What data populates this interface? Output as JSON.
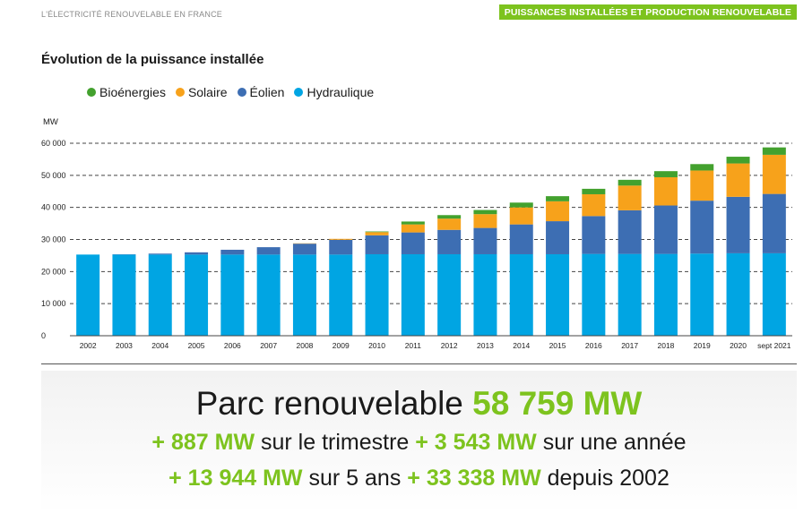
{
  "header": {
    "section": "L'ÉLECTRICITÉ RENOUVELABLE EN FRANCE",
    "badge": "PUISSANCES INSTALLÉES ET PRODUCTION RENOUVELABLE"
  },
  "chart_data": {
    "type": "bar",
    "stacked": true,
    "title": "Évolution de la puissance installée",
    "ylabel": "MW",
    "xlabel": "",
    "ylim": [
      0,
      60000
    ],
    "yticks": [
      0,
      10000,
      20000,
      30000,
      40000,
      50000,
      60000
    ],
    "ytick_labels": [
      "0",
      "10 000",
      "20 000",
      "30 000",
      "40 000",
      "50 000",
      "60 000"
    ],
    "grid": true,
    "legend_position": "top-left",
    "categories": [
      "2002",
      "2003",
      "2004",
      "2005",
      "2006",
      "2007",
      "2008",
      "2009",
      "2010",
      "2011",
      "2012",
      "2013",
      "2014",
      "2015",
      "2016",
      "2017",
      "2018",
      "2019",
      "2020",
      "sept 2021"
    ],
    "series": [
      {
        "name": "Hydraulique",
        "color": "#00a5e3",
        "values": [
          25300,
          25300,
          25300,
          25300,
          25300,
          25300,
          25300,
          25300,
          25400,
          25400,
          25400,
          25400,
          25400,
          25400,
          25500,
          25500,
          25500,
          25600,
          25700,
          25700
        ]
      },
      {
        "name": "Éolien",
        "color": "#3d6eb3",
        "values": [
          0,
          100,
          300,
          700,
          1500,
          2300,
          3400,
          4600,
          5900,
          6800,
          7600,
          8200,
          9300,
          10300,
          11800,
          13600,
          15100,
          16500,
          17600,
          18500
        ]
      },
      {
        "name": "Solaire",
        "color": "#f7a21b",
        "values": [
          0,
          0,
          0,
          0,
          0,
          0,
          100,
          300,
          1000,
          2500,
          3500,
          4300,
          5300,
          6200,
          6800,
          7700,
          8800,
          9400,
          10400,
          12200
        ]
      },
      {
        "name": "Bioénergies",
        "color": "#43a12e",
        "values": [
          0,
          0,
          0,
          0,
          0,
          0,
          0,
          0,
          200,
          900,
          1100,
          1300,
          1500,
          1600,
          1700,
          1800,
          1900,
          2000,
          2100,
          2300
        ]
      }
    ],
    "legend_order": [
      "Bioénergies",
      "Solaire",
      "Éolien",
      "Hydraulique"
    ]
  },
  "summary": {
    "line1_text": "Parc renouvelable",
    "line1_value": "58 759 MW",
    "line2_value1": "+ 887 MW",
    "line2_text1": "sur le trimestre",
    "line2_value2": "+ 3 543 MW",
    "line2_text2": "sur une année",
    "line3_value1": "+ 13 944 MW",
    "line3_text1": "sur 5 ans",
    "line3_value2": "+ 33 338 MW",
    "line3_text2": "depuis 2002"
  }
}
